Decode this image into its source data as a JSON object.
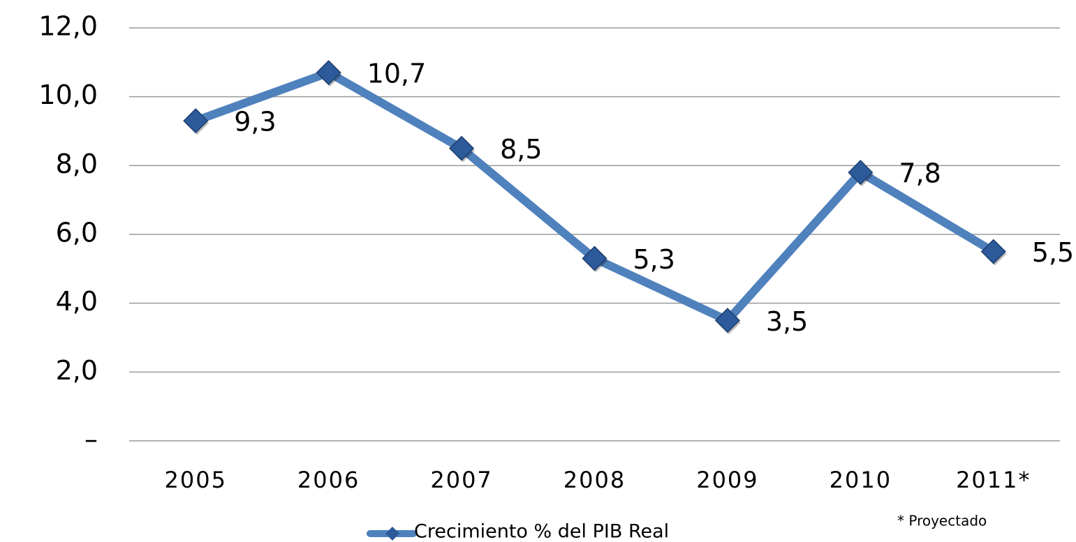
{
  "chart_data": {
    "type": "line",
    "categories": [
      "2005",
      "2006",
      "2007",
      "2008",
      "2009",
      "2010",
      "2011*"
    ],
    "series": [
      {
        "name": "Crecimiento % del PIB Real",
        "color": "#4f81bd",
        "marker_color": "#2c5a9a",
        "values": [
          9.3,
          10.7,
          8.5,
          5.3,
          3.5,
          7.8,
          5.5
        ],
        "value_labels": [
          "9,3",
          "10,7",
          "8,5",
          "5,3",
          "3,5",
          "7,8",
          "5,5"
        ]
      }
    ],
    "ylim": [
      0,
      12
    ],
    "yticks": [
      {
        "value": 0,
        "label": "–"
      },
      {
        "value": 2,
        "label": "2,0"
      },
      {
        "value": 4,
        "label": "4,0"
      },
      {
        "value": 6,
        "label": "6,0"
      },
      {
        "value": 8,
        "label": "8,0"
      },
      {
        "value": 10,
        "label": "10,0"
      },
      {
        "value": 12,
        "label": "12,0"
      }
    ],
    "grid": true,
    "legend": "bottom",
    "annotation": "* Proyectado"
  }
}
